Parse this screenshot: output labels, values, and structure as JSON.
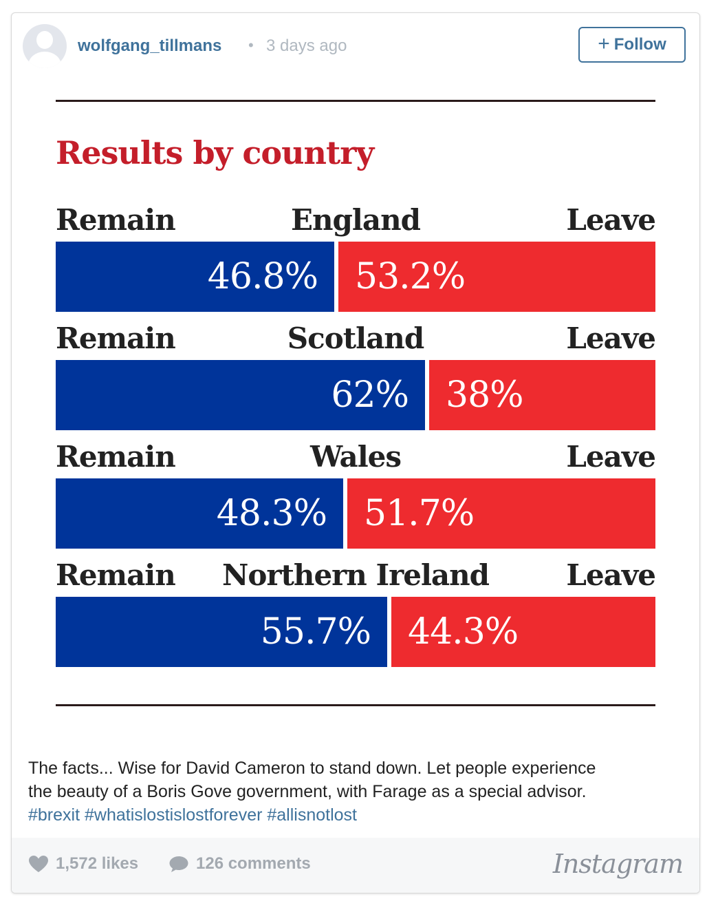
{
  "post": {
    "username": "wolfgang_tillmans",
    "separator": "•",
    "time_ago": "3 days ago",
    "follow_plus": "+",
    "follow_label": "Follow"
  },
  "graphic": {
    "title": "Results by country",
    "rows": [
      {
        "remain_label": "Remain",
        "country": "England",
        "leave_label": "Leave",
        "remain_pct_text": "46.8%",
        "leave_pct_text": "53.2%"
      },
      {
        "remain_label": "Remain",
        "country": "Scotland",
        "leave_label": "Leave",
        "remain_pct_text": "62%",
        "leave_pct_text": "38%"
      },
      {
        "remain_label": "Remain",
        "country": "Wales",
        "leave_label": "Leave",
        "remain_pct_text": "48.3%",
        "leave_pct_text": "51.7%"
      },
      {
        "remain_label": "Remain",
        "country": "Northern Ireland",
        "leave_label": "Leave",
        "remain_pct_text": "55.7%",
        "leave_pct_text": "44.3%"
      }
    ],
    "colors": {
      "remain": "#00349a",
      "leave": "#ee2b2f",
      "title": "#c41e2a"
    }
  },
  "caption": {
    "line1": "The facts... Wise for David Cameron to stand down. Let people experience",
    "line2": "the beauty of a Boris Gove government, with Farage as a special advisor.",
    "hashtags": "#brexit #whatislostislostforever #allisnotlost"
  },
  "footer": {
    "likes": "1,572 likes",
    "comments": "126 comments",
    "brand": "Instagram"
  },
  "icons": [
    "avatar-placeholder-icon",
    "heart-icon",
    "comment-bubble-icon",
    "instagram-logo"
  ],
  "chart_data": {
    "type": "bar",
    "title": "Results by country",
    "categories": [
      "England",
      "Scotland",
      "Wales",
      "Northern Ireland"
    ],
    "series": [
      {
        "name": "Remain",
        "values": [
          46.8,
          62,
          48.3,
          55.7
        ]
      },
      {
        "name": "Leave",
        "values": [
          53.2,
          38,
          51.7,
          44.3
        ]
      }
    ],
    "ylim": [
      0,
      100
    ]
  }
}
